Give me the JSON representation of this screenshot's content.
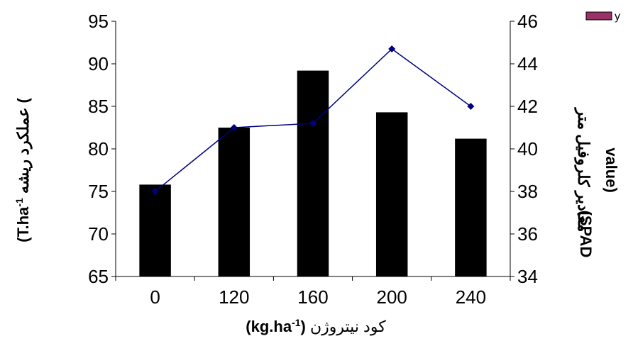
{
  "chart_data": {
    "type": "bar+line",
    "categories": [
      "0",
      "120",
      "160",
      "200",
      "240"
    ],
    "series": [
      {
        "chart": "bar",
        "axis": "left",
        "values": [
          75.8,
          82.5,
          89.2,
          84.3,
          81.2
        ],
        "color": "#000000"
      },
      {
        "name": "y",
        "chart": "line",
        "axis": "right",
        "values": [
          38.0,
          41.0,
          41.2,
          44.7,
          42.0
        ],
        "color": "#000080"
      }
    ],
    "y_left": {
      "min": 65,
      "max": 95,
      "step": 5,
      "ticks": [
        "65",
        "70",
        "75",
        "80",
        "85",
        "90",
        "95"
      ],
      "title_rtl": "عملکرد ریشه (",
      "title_ltr": "(T.ha",
      "title_sup": "-1"
    },
    "y_right": {
      "min": 34,
      "max": 46,
      "step": 2,
      "ticks": [
        "34",
        "36",
        "38",
        "40",
        "42",
        "44",
        "46"
      ],
      "title_line1": "مقادیر کلروفیل متر",
      "title_spad": "(SPAD",
      "title_line2": "value)"
    },
    "x_axis": {
      "title_rtl": "کود نیتروژن",
      "title_ltr": "(kg.ha",
      "title_sup": "-1",
      "title_close": ")"
    },
    "legend": {
      "position": "top-right",
      "label": "y",
      "swatch_color": "#993366"
    },
    "grid": false
  }
}
